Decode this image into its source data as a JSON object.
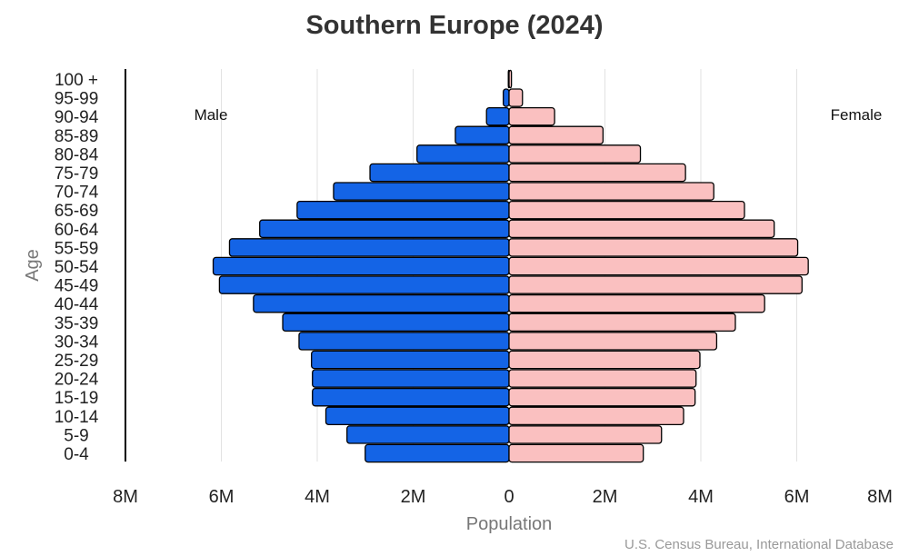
{
  "chart_data": {
    "type": "bar",
    "orientation": "horizontal-pyramid",
    "title": "Southern Europe (2024)",
    "xlabel": "Population",
    "ylabel": "Age",
    "source": "U.S. Census Bureau, International Database",
    "xlim": [
      -8000000,
      8000000
    ],
    "x_ticks": [
      "8M",
      "6M",
      "4M",
      "2M",
      "0",
      "2M",
      "4M",
      "6M",
      "8M"
    ],
    "grid": true,
    "categories": [
      "0-4",
      "5-9",
      "10-14",
      "15-19",
      "20-24",
      "25-29",
      "30-34",
      "35-39",
      "40-44",
      "45-49",
      "50-54",
      "55-59",
      "60-64",
      "65-69",
      "70-74",
      "75-79",
      "80-84",
      "85-89",
      "90-94",
      "95-99",
      "100 +"
    ],
    "series": [
      {
        "name": "Male",
        "color": "#1464e6",
        "values": [
          3000000,
          3380000,
          3820000,
          4100000,
          4100000,
          4120000,
          4380000,
          4720000,
          5330000,
          6040000,
          6170000,
          5830000,
          5200000,
          4420000,
          3660000,
          2900000,
          1920000,
          1120000,
          470000,
          120000,
          15000
        ]
      },
      {
        "name": "Female",
        "color": "#fac0c0",
        "values": [
          2800000,
          3180000,
          3640000,
          3880000,
          3900000,
          3980000,
          4330000,
          4720000,
          5330000,
          6110000,
          6240000,
          6020000,
          5530000,
          4910000,
          4270000,
          3680000,
          2740000,
          1960000,
          950000,
          280000,
          50000
        ]
      }
    ]
  }
}
